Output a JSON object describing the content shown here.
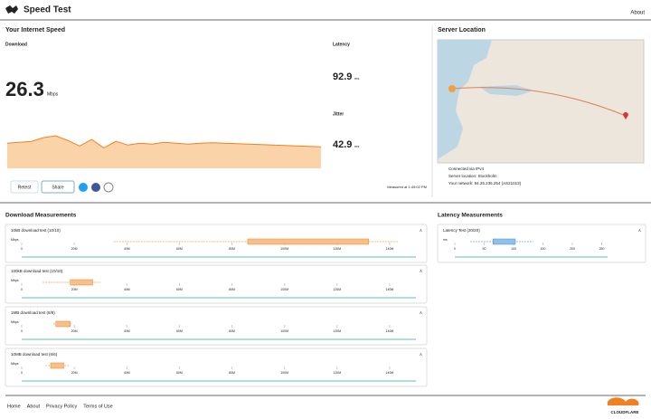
{
  "header": {
    "title": "Speed Test",
    "about": "About"
  },
  "speed": {
    "title": "Your Internet Speed",
    "download": {
      "label": "Download",
      "value": "26.3",
      "unit": "Mbps"
    },
    "latency": {
      "label": "Latency",
      "value": "92.9",
      "unit": "ms"
    },
    "jitter": {
      "label": "Jitter",
      "value": "42.9",
      "unit": "ms"
    },
    "trend": [
      27,
      28,
      29,
      33,
      35,
      30,
      24,
      31,
      22,
      29,
      25,
      27,
      26,
      28,
      27,
      26,
      27,
      27.5,
      27,
      26.5,
      26,
      25.5,
      25,
      24.5,
      24,
      23.5,
      23
    ],
    "buttons": [
      "Retest",
      "Share"
    ],
    "measured_at": "Measured at 1:49:02 PM"
  },
  "server": {
    "title": "Server Location",
    "info": [
      "Connected via IPv4",
      "Server location: Stockholm",
      "Your network: 94.25.235.254 (AS21013)"
    ]
  },
  "download_measurements": {
    "title": "Download Measurements",
    "unit": "Mbps",
    "xlim": [
      0,
      150
    ],
    "xticks": [
      0,
      {
        "value": 20,
        "label": "20M"
      },
      {
        "value": 40,
        "label": "40M"
      },
      {
        "value": 60,
        "label": "60M"
      },
      {
        "value": 80,
        "label": "80M"
      },
      {
        "value": 100,
        "label": "100M"
      },
      {
        "value": 120,
        "label": "120M"
      },
      {
        "value": 140,
        "label": "140M"
      }
    ],
    "tests": [
      {
        "label": "10kB download test (10/10)",
        "min": 35,
        "q1": 86,
        "q3": 132,
        "max": 143
      },
      {
        "label": "100kB download test (10/10)",
        "min": 8,
        "q1": 18.5,
        "q3": 27,
        "max": 30
      },
      {
        "label": "1MB download test (8/8)",
        "min": 12,
        "q1": 13,
        "q3": 18.5,
        "max": 19
      },
      {
        "label": "10MB download test (6/6)",
        "min": 9,
        "q1": 11,
        "q3": 16,
        "max": 18
      }
    ]
  },
  "latency_measurements": {
    "title": "Latency Measurements",
    "unit": "ms",
    "xlim": [
      0,
      260
    ],
    "xticks": [
      0,
      50,
      100,
      150,
      200,
      250
    ],
    "tests": [
      {
        "label": "Latency Test (20/20)",
        "min": 26,
        "q1": 65,
        "q3": 103,
        "max": 134
      }
    ]
  },
  "footer": {
    "links": [
      "Home",
      "About",
      "Privacy Policy",
      "Terms of Use"
    ],
    "brand": "CLOUDFLARE"
  }
}
